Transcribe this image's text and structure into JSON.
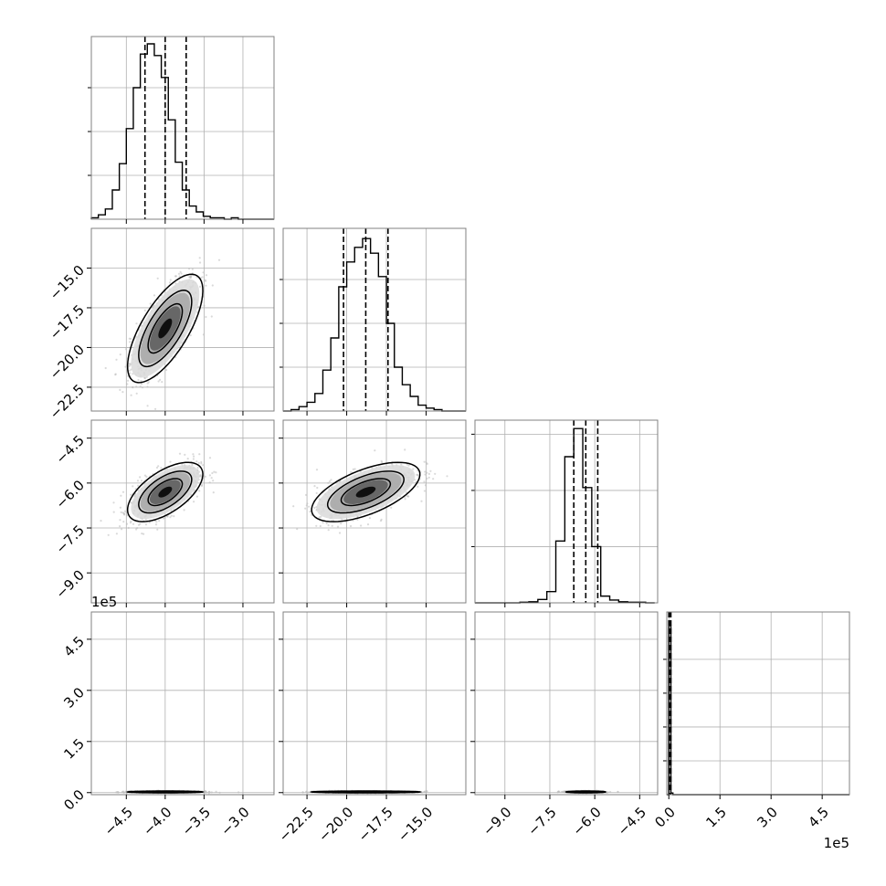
{
  "chart_data": {
    "type": "corner",
    "grid": true,
    "variables": [
      {
        "range": [
          -4.95,
          -2.6
        ],
        "ticks": [
          "-4.5",
          "-4.0",
          "-3.5",
          "-3.0"
        ],
        "tick_values": [
          -4.5,
          -4.0,
          -3.5,
          -3.0
        ],
        "quantiles": [
          -4.26,
          -4.0,
          -3.73
        ]
      },
      {
        "range": [
          -24.0,
          -12.5
        ],
        "ticks": [
          "-22.5",
          "-20.0",
          "-17.5",
          "-15.0"
        ],
        "tick_values": [
          -22.5,
          -20.0,
          -17.5,
          -15.0
        ],
        "quantiles": [
          -20.2,
          -18.8,
          -17.4
        ]
      },
      {
        "range": [
          -10.0,
          -3.9
        ],
        "ticks": [
          "-9.0",
          "-7.5",
          "-6.0",
          "-4.5"
        ],
        "tick_values": [
          -9.0,
          -7.5,
          -6.0,
          -4.5
        ],
        "quantiles": [
          -6.7,
          -6.3,
          -5.9
        ]
      },
      {
        "range": [
          -0.06,
          5.3
        ],
        "ticks": [
          "0.0",
          "1.5",
          "3.0",
          "4.5"
        ],
        "tick_values": [
          0.0,
          1.5,
          3.0,
          4.5
        ],
        "quantiles": [
          0.0,
          0.02,
          0.06
        ],
        "offset": "1e5"
      }
    ],
    "histograms": [
      {
        "edges": [
          -4.95,
          -4.86,
          -4.77,
          -4.68,
          -4.59,
          -4.5,
          -4.41,
          -4.32,
          -4.23,
          -4.14,
          -4.05,
          -3.96,
          -3.87,
          -3.78,
          -3.69,
          -3.6,
          -3.51,
          -3.42,
          -3.33,
          -3.24,
          -3.15,
          -3.06,
          -2.97,
          -2.88,
          -2.79,
          -2.7,
          -2.6
        ],
        "counts": [
          1,
          3,
          7,
          20,
          38,
          62,
          90,
          113,
          120,
          112,
          97,
          68,
          39,
          20,
          9,
          5,
          2,
          1,
          1,
          0,
          1,
          0,
          0,
          0,
          0,
          0
        ],
        "ymax": 125,
        "yticks": [
          30,
          60,
          90
        ]
      },
      {
        "edges": [
          -24.0,
          -23.5,
          -23.0,
          -22.5,
          -22.0,
          -21.5,
          -21.0,
          -20.5,
          -20.0,
          -19.5,
          -19.0,
          -18.5,
          -18.0,
          -17.5,
          -17.0,
          -16.5,
          -16.0,
          -15.5,
          -15.0,
          -14.5,
          -14.0,
          -13.5,
          -13.0,
          -12.5
        ],
        "counts": [
          0,
          1,
          3,
          6,
          12,
          28,
          50,
          85,
          102,
          112,
          118,
          108,
          92,
          60,
          30,
          18,
          10,
          4,
          2,
          1,
          0,
          0,
          0
        ],
        "ymax": 125,
        "yticks": [
          30,
          60,
          90
        ]
      },
      {
        "edges": [
          -10.0,
          -9.7,
          -9.4,
          -9.1,
          -8.8,
          -8.5,
          -8.2,
          -7.9,
          -7.6,
          -7.3,
          -7.0,
          -6.7,
          -6.4,
          -6.1,
          -5.8,
          -5.5,
          -5.2,
          -4.9,
          -4.6,
          -4.3,
          -4.0
        ],
        "counts": [
          0,
          0,
          0,
          0,
          0,
          1,
          2,
          6,
          20,
          110,
          260,
          310,
          205,
          100,
          12,
          5,
          2,
          1,
          1,
          0
        ],
        "ymax": 325,
        "yticks": [
          100,
          200,
          300
        ]
      },
      {
        "edges": [
          -0.06,
          0.0,
          0.06,
          0.12,
          5.3
        ],
        "counts": [
          0,
          100,
          1,
          0
        ],
        "ymax": 108,
        "yticks": [
          20,
          40,
          60,
          80
        ]
      }
    ],
    "pairs": [
      {
        "row": 1,
        "col": 0,
        "mean": [
          -4.0,
          -18.8
        ],
        "sd": [
          0.22,
          1.55
        ],
        "rho": 0.7
      },
      {
        "row": 2,
        "col": 0,
        "mean": [
          -4.0,
          -6.3
        ],
        "sd": [
          0.22,
          0.45
        ],
        "rho": 0.6
      },
      {
        "row": 2,
        "col": 1,
        "mean": [
          -18.8,
          -6.3
        ],
        "sd": [
          1.55,
          0.45
        ],
        "rho": 0.6
      },
      {
        "row": 3,
        "col": 0,
        "mean": [
          -4.0,
          0.02
        ],
        "sd": [
          0.22,
          0.012
        ],
        "rho": 0.0
      },
      {
        "row": 3,
        "col": 1,
        "mean": [
          -18.8,
          0.02
        ],
        "sd": [
          1.55,
          0.012
        ],
        "rho": 0.0
      },
      {
        "row": 3,
        "col": 2,
        "mean": [
          -6.3,
          0.02
        ],
        "sd": [
          0.3,
          0.012
        ],
        "rho": 0.0
      }
    ]
  },
  "colors": {
    "line": "#000000",
    "grid": "#b0b0b0",
    "frame": "#808080",
    "point": "#bbbbbb",
    "fill_light": "#d9d9d9",
    "fill_mid": "#a6a6a6",
    "fill_dark": "#5a5a5a",
    "fill_core": "#000000"
  }
}
